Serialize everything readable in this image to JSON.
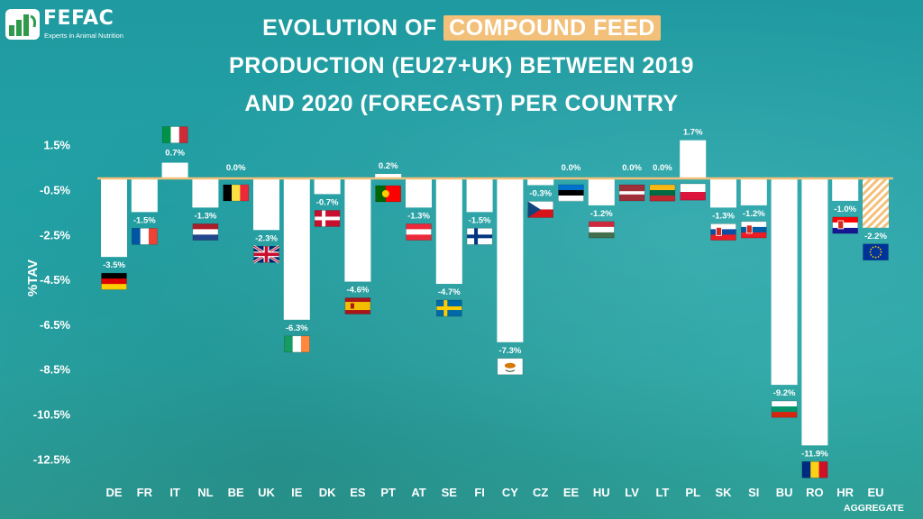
{
  "logo": {
    "name": "FEFAC",
    "tagline": "Experts in Animal Nutrition"
  },
  "title": {
    "part1": "EVOLUTION OF ",
    "highlight": "COMPOUND FEED",
    "line2": "PRODUCTION (EU27+UK) BETWEEN 2019",
    "line3": "AND 2020 (FORECAST) PER COUNTRY"
  },
  "colors": {
    "background": "#22a2a6",
    "bar": "#ffffff",
    "aggregate_stripe": "#f3c07a",
    "zero_line": "#f3c07a",
    "title_highlight": "#f3c07a",
    "text": "#ffffff"
  },
  "chart_data": {
    "type": "bar",
    "ylabel": "%TAV",
    "ytick_labels": [
      "1.5%",
      "-0.5%",
      "-2.5%",
      "-4.5%",
      "-6.5%",
      "-8.5%",
      "-10.5%",
      "-12.5%"
    ],
    "ytick_values": [
      1.5,
      -0.5,
      -2.5,
      -4.5,
      -6.5,
      -8.5,
      -10.5,
      -12.5
    ],
    "ylim": [
      -12.5,
      1.9
    ],
    "grid": false,
    "categories": [
      "DE",
      "FR",
      "IT",
      "NL",
      "BE",
      "UK",
      "IE",
      "DK",
      "ES",
      "PT",
      "AT",
      "SE",
      "FI",
      "CY",
      "CZ",
      "EE",
      "HU",
      "LV",
      "LT",
      "PL",
      "SK",
      "SI",
      "BU",
      "RO",
      "HR",
      "EU"
    ],
    "category_sublabels": {
      "EU": "AGGREGATE"
    },
    "values": [
      -3.5,
      -1.5,
      0.7,
      -1.3,
      0.0,
      -2.3,
      -6.3,
      -0.7,
      -4.6,
      0.2,
      -1.3,
      -4.7,
      -1.5,
      -7.3,
      -0.3,
      0.0,
      -1.2,
      0.0,
      0.0,
      1.7,
      -1.3,
      -1.2,
      -9.2,
      -11.9,
      -1.0,
      -2.2
    ],
    "value_labels": [
      "-3.5%",
      "-1.5%",
      "0.7%",
      "-1.3%",
      "0.0%",
      "-2.3%",
      "-6.3%",
      "-0.7%",
      "-4.6%",
      "0.2%",
      "-1.3%",
      "-4.7%",
      "-1.5%",
      "-7.3%",
      "-0.3%",
      "0.0%",
      "-1.2%",
      "0.0%",
      "0.0%",
      "1.7%",
      "-1.3%",
      "-1.2%",
      "-9.2%",
      "-11.9%",
      "-1.0%",
      "-2.2%"
    ],
    "aggregate_category": "EU",
    "flag_icons": [
      "germany-flag",
      "france-flag",
      "italy-flag",
      "netherlands-flag",
      "belgium-flag",
      "uk-flag",
      "ireland-flag",
      "denmark-flag",
      "spain-flag",
      "portugal-flag",
      "austria-flag",
      "sweden-flag",
      "finland-flag",
      "cyprus-flag",
      "czechia-flag",
      "estonia-flag",
      "hungary-flag",
      "latvia-flag",
      "lithuania-flag",
      "poland-flag",
      "slovakia-flag",
      "slovenia-flag",
      "bulgaria-flag",
      "romania-flag",
      "croatia-flag",
      "eu-flag"
    ]
  }
}
